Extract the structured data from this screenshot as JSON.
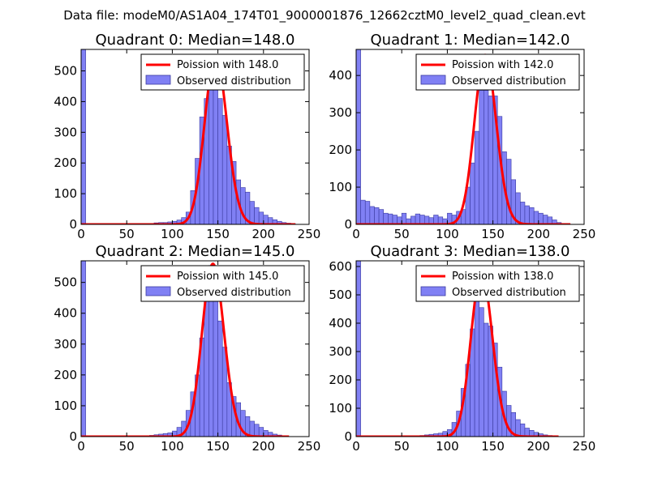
{
  "figure": {
    "suptitle": "Data file: modeM0/AS1A04_174T01_9000001876_12662cztM0_level2_quad_clean.evt"
  },
  "colors": {
    "bar_fill": "#8080f4",
    "bar_edge": "#3a3aa0",
    "poisson_line": "#ff0000",
    "axes": "#000000",
    "legend_edge": "#000000"
  },
  "chart_data": [
    {
      "type": "bar",
      "title": "Quadrant 0: Median=148.0",
      "xlim": [
        0,
        250
      ],
      "ylim": [
        0,
        570
      ],
      "xticks": [
        0,
        50,
        100,
        150,
        200,
        250
      ],
      "yticks": [
        0,
        100,
        200,
        300,
        400,
        500
      ],
      "bin_width": 5,
      "series": [
        {
          "name": "Observed distribution",
          "kind": "histogram",
          "bins": [
            {
              "x": 0,
              "v": 570
            },
            {
              "x": 80,
              "v": 5
            },
            {
              "x": 85,
              "v": 6
            },
            {
              "x": 90,
              "v": 6
            },
            {
              "x": 95,
              "v": 8
            },
            {
              "x": 100,
              "v": 10
            },
            {
              "x": 105,
              "v": 14
            },
            {
              "x": 110,
              "v": 22
            },
            {
              "x": 115,
              "v": 40
            },
            {
              "x": 120,
              "v": 110
            },
            {
              "x": 125,
              "v": 215
            },
            {
              "x": 130,
              "v": 350
            },
            {
              "x": 135,
              "v": 410
            },
            {
              "x": 140,
              "v": 525
            },
            {
              "x": 145,
              "v": 460
            },
            {
              "x": 150,
              "v": 410
            },
            {
              "x": 155,
              "v": 355
            },
            {
              "x": 160,
              "v": 255
            },
            {
              "x": 165,
              "v": 205
            },
            {
              "x": 170,
              "v": 145
            },
            {
              "x": 175,
              "v": 120
            },
            {
              "x": 180,
              "v": 105
            },
            {
              "x": 185,
              "v": 75
            },
            {
              "x": 190,
              "v": 55
            },
            {
              "x": 195,
              "v": 40
            },
            {
              "x": 200,
              "v": 30
            },
            {
              "x": 205,
              "v": 22
            },
            {
              "x": 210,
              "v": 15
            },
            {
              "x": 215,
              "v": 10
            },
            {
              "x": 220,
              "v": 6
            },
            {
              "x": 225,
              "v": 4
            },
            {
              "x": 230,
              "v": 2
            }
          ]
        },
        {
          "name": "Poission with 148.0",
          "kind": "poisson",
          "lambda": 148.0,
          "peak": 550,
          "x_range": [
            0,
            235
          ]
        }
      ],
      "legend": {
        "placement": "top-right",
        "entries": [
          "Poission with 148.0",
          "Observed distribution"
        ]
      }
    },
    {
      "type": "bar",
      "title": "Quadrant 1: Median=142.0",
      "xlim": [
        0,
        250
      ],
      "ylim": [
        0,
        470
      ],
      "xticks": [
        0,
        50,
        100,
        150,
        200,
        250
      ],
      "yticks": [
        0,
        100,
        200,
        300,
        400
      ],
      "bin_width": 5,
      "series": [
        {
          "name": "Observed distribution",
          "kind": "histogram",
          "bins": [
            {
              "x": 0,
              "v": 470
            },
            {
              "x": 5,
              "v": 65
            },
            {
              "x": 10,
              "v": 62
            },
            {
              "x": 15,
              "v": 48
            },
            {
              "x": 20,
              "v": 45
            },
            {
              "x": 25,
              "v": 40
            },
            {
              "x": 30,
              "v": 30
            },
            {
              "x": 35,
              "v": 28
            },
            {
              "x": 40,
              "v": 25
            },
            {
              "x": 45,
              "v": 20
            },
            {
              "x": 50,
              "v": 30
            },
            {
              "x": 55,
              "v": 15
            },
            {
              "x": 60,
              "v": 22
            },
            {
              "x": 65,
              "v": 28
            },
            {
              "x": 70,
              "v": 25
            },
            {
              "x": 75,
              "v": 22
            },
            {
              "x": 80,
              "v": 18
            },
            {
              "x": 85,
              "v": 25
            },
            {
              "x": 90,
              "v": 20
            },
            {
              "x": 95,
              "v": 15
            },
            {
              "x": 100,
              "v": 30
            },
            {
              "x": 105,
              "v": 25
            },
            {
              "x": 110,
              "v": 35
            },
            {
              "x": 115,
              "v": 40
            },
            {
              "x": 120,
              "v": 100
            },
            {
              "x": 125,
              "v": 165
            },
            {
              "x": 130,
              "v": 250
            },
            {
              "x": 135,
              "v": 360
            },
            {
              "x": 140,
              "v": 360
            },
            {
              "x": 145,
              "v": 345
            },
            {
              "x": 150,
              "v": 345
            },
            {
              "x": 155,
              "v": 290
            },
            {
              "x": 160,
              "v": 195
            },
            {
              "x": 165,
              "v": 175
            },
            {
              "x": 170,
              "v": 120
            },
            {
              "x": 175,
              "v": 85
            },
            {
              "x": 180,
              "v": 60
            },
            {
              "x": 185,
              "v": 50
            },
            {
              "x": 190,
              "v": 45
            },
            {
              "x": 195,
              "v": 35
            },
            {
              "x": 200,
              "v": 30
            },
            {
              "x": 205,
              "v": 25
            },
            {
              "x": 210,
              "v": 20
            },
            {
              "x": 215,
              "v": 12
            },
            {
              "x": 220,
              "v": 5
            }
          ]
        },
        {
          "name": "Poission with 142.0",
          "kind": "poisson",
          "lambda": 142.0,
          "peak": 455,
          "x_range": [
            0,
            235
          ]
        }
      ],
      "legend": {
        "placement": "top-right",
        "entries": [
          "Poission with 142.0",
          "Observed distribution"
        ]
      }
    },
    {
      "type": "bar",
      "title": "Quadrant 2: Median=145.0",
      "xlim": [
        0,
        250
      ],
      "ylim": [
        0,
        570
      ],
      "xticks": [
        0,
        50,
        100,
        150,
        200,
        250
      ],
      "yticks": [
        0,
        100,
        200,
        300,
        400,
        500
      ],
      "bin_width": 5,
      "series": [
        {
          "name": "Observed distribution",
          "kind": "histogram",
          "bins": [
            {
              "x": 0,
              "v": 570
            },
            {
              "x": 75,
              "v": 4
            },
            {
              "x": 80,
              "v": 6
            },
            {
              "x": 85,
              "v": 8
            },
            {
              "x": 90,
              "v": 10
            },
            {
              "x": 95,
              "v": 12
            },
            {
              "x": 100,
              "v": 18
            },
            {
              "x": 105,
              "v": 30
            },
            {
              "x": 110,
              "v": 50
            },
            {
              "x": 115,
              "v": 85
            },
            {
              "x": 120,
              "v": 145
            },
            {
              "x": 125,
              "v": 200
            },
            {
              "x": 130,
              "v": 320
            },
            {
              "x": 135,
              "v": 440
            },
            {
              "x": 140,
              "v": 555
            },
            {
              "x": 145,
              "v": 460
            },
            {
              "x": 150,
              "v": 375
            },
            {
              "x": 155,
              "v": 290
            },
            {
              "x": 160,
              "v": 175
            },
            {
              "x": 165,
              "v": 130
            },
            {
              "x": 170,
              "v": 110
            },
            {
              "x": 175,
              "v": 85
            },
            {
              "x": 180,
              "v": 65
            },
            {
              "x": 185,
              "v": 50
            },
            {
              "x": 190,
              "v": 40
            },
            {
              "x": 195,
              "v": 30
            },
            {
              "x": 200,
              "v": 20
            },
            {
              "x": 205,
              "v": 14
            },
            {
              "x": 210,
              "v": 8
            },
            {
              "x": 215,
              "v": 5
            },
            {
              "x": 220,
              "v": 3
            }
          ]
        },
        {
          "name": "Poission with 145.0",
          "kind": "poisson",
          "lambda": 145.0,
          "peak": 560,
          "x_range": [
            0,
            228
          ]
        }
      ],
      "legend": {
        "placement": "top-right",
        "entries": [
          "Poission with 145.0",
          "Observed distribution"
        ]
      }
    },
    {
      "type": "bar",
      "title": "Quadrant 3: Median=138.0",
      "xlim": [
        0,
        250
      ],
      "ylim": [
        0,
        620
      ],
      "xticks": [
        0,
        50,
        100,
        150,
        200,
        250
      ],
      "yticks": [
        0,
        100,
        200,
        300,
        400,
        500,
        600
      ],
      "bin_width": 5,
      "series": [
        {
          "name": "Observed distribution",
          "kind": "histogram",
          "bins": [
            {
              "x": 0,
              "v": 620
            },
            {
              "x": 70,
              "v": 4
            },
            {
              "x": 75,
              "v": 6
            },
            {
              "x": 80,
              "v": 8
            },
            {
              "x": 85,
              "v": 10
            },
            {
              "x": 90,
              "v": 12
            },
            {
              "x": 95,
              "v": 18
            },
            {
              "x": 100,
              "v": 25
            },
            {
              "x": 105,
              "v": 50
            },
            {
              "x": 110,
              "v": 90
            },
            {
              "x": 115,
              "v": 170
            },
            {
              "x": 120,
              "v": 255
            },
            {
              "x": 125,
              "v": 380
            },
            {
              "x": 130,
              "v": 560
            },
            {
              "x": 135,
              "v": 455
            },
            {
              "x": 140,
              "v": 400
            },
            {
              "x": 145,
              "v": 390
            },
            {
              "x": 150,
              "v": 330
            },
            {
              "x": 155,
              "v": 245
            },
            {
              "x": 160,
              "v": 160
            },
            {
              "x": 165,
              "v": 110
            },
            {
              "x": 170,
              "v": 85
            },
            {
              "x": 175,
              "v": 60
            },
            {
              "x": 180,
              "v": 45
            },
            {
              "x": 185,
              "v": 30
            },
            {
              "x": 190,
              "v": 22
            },
            {
              "x": 195,
              "v": 15
            },
            {
              "x": 200,
              "v": 10
            },
            {
              "x": 205,
              "v": 6
            },
            {
              "x": 210,
              "v": 4
            }
          ]
        },
        {
          "name": "Poission with 138.0",
          "kind": "poisson",
          "lambda": 138.0,
          "peak": 580,
          "x_range": [
            0,
            222
          ]
        }
      ],
      "legend": {
        "placement": "top-right",
        "entries": [
          "Poission with 138.0",
          "Observed distribution"
        ]
      }
    }
  ]
}
